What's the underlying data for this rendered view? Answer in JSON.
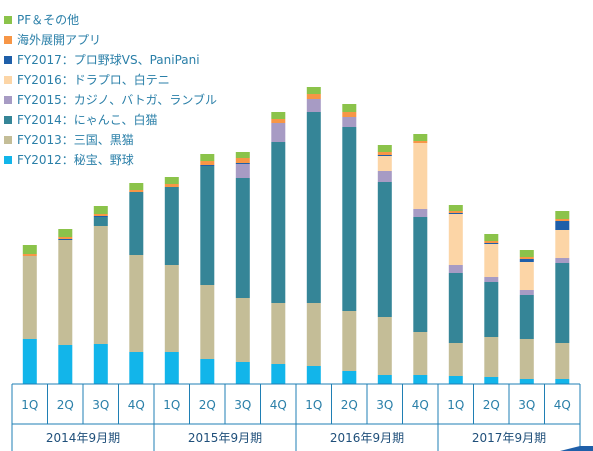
{
  "colors": {
    "pf": "#8bc34a",
    "overseas": "#f79646",
    "fy2017": "#1f5fa9",
    "fy2016": "#fcd5a6",
    "fy2015": "#a79bc4",
    "fy2014": "#358597",
    "fy2013": "#c4bd97",
    "fy2012": "#12b5ea",
    "axis": "#1f7fb4"
  },
  "chart_data": {
    "type": "bar",
    "stacked": true,
    "legend_position": "top-left",
    "grid": false,
    "categories": [
      "1Q",
      "2Q",
      "3Q",
      "4Q",
      "1Q",
      "2Q",
      "3Q",
      "4Q",
      "1Q",
      "2Q",
      "3Q",
      "4Q",
      "1Q",
      "2Q",
      "3Q",
      "4Q"
    ],
    "period_groups": [
      {
        "label": "2014年9月期",
        "start": 0,
        "count": 4
      },
      {
        "label": "2015年9月期",
        "start": 4,
        "count": 4
      },
      {
        "label": "2016年9月期",
        "start": 8,
        "count": 4
      },
      {
        "label": "2017年9月期",
        "start": 12,
        "count": 4
      }
    ],
    "ylim": [
      0,
      300
    ],
    "series": [
      {
        "name": "FY2012：秘宝、野球",
        "color_key": "fy2012",
        "values": [
          45,
          39,
          40,
          32,
          32,
          25,
          22,
          20,
          18,
          13,
          9,
          9,
          8,
          7,
          5,
          5
        ]
      },
      {
        "name": "FY2013：三国、黒猫",
        "color_key": "fy2013",
        "values": [
          83,
          105,
          118,
          97,
          87,
          74,
          64,
          61,
          63,
          60,
          58,
          43,
          33,
          40,
          40,
          36
        ]
      },
      {
        "name": "FY2014：にゃんこ、白猫",
        "color_key": "fy2014",
        "values": [
          0,
          0,
          9,
          63,
          78,
          119,
          120,
          161,
          191,
          184,
          135,
          115,
          70,
          55,
          44,
          80
        ]
      },
      {
        "name": "FY2015：カジノ、バトガ、ランブル",
        "color_key": "fy2015",
        "values": [
          0,
          0,
          0,
          0,
          0,
          0,
          14,
          19,
          13,
          10,
          11,
          8,
          8,
          5,
          5,
          5
        ]
      },
      {
        "name": "FY2016：ドラプロ、白テニ",
        "color_key": "fy2016",
        "values": [
          0,
          0,
          0,
          0,
          0,
          0,
          0,
          0,
          0,
          0,
          15,
          66,
          51,
          33,
          28,
          28
        ]
      },
      {
        "name": "FY2017：プロ野球VS、PaniPani",
        "color_key": "fy2017",
        "values": [
          0,
          1,
          1,
          0,
          0,
          1,
          1,
          0,
          0,
          0,
          1,
          0,
          1,
          1,
          3,
          9
        ]
      },
      {
        "name": "海外展開アプリ",
        "color_key": "overseas",
        "values": [
          2,
          2,
          2,
          2,
          3,
          4,
          5,
          4,
          5,
          5,
          3,
          2,
          2,
          2,
          2,
          2
        ]
      },
      {
        "name": "PF＆その他",
        "color_key": "pf",
        "values": [
          9,
          8,
          8,
          7,
          7,
          7,
          6,
          7,
          7,
          8,
          7,
          7,
          6,
          7,
          7,
          8
        ]
      }
    ]
  }
}
